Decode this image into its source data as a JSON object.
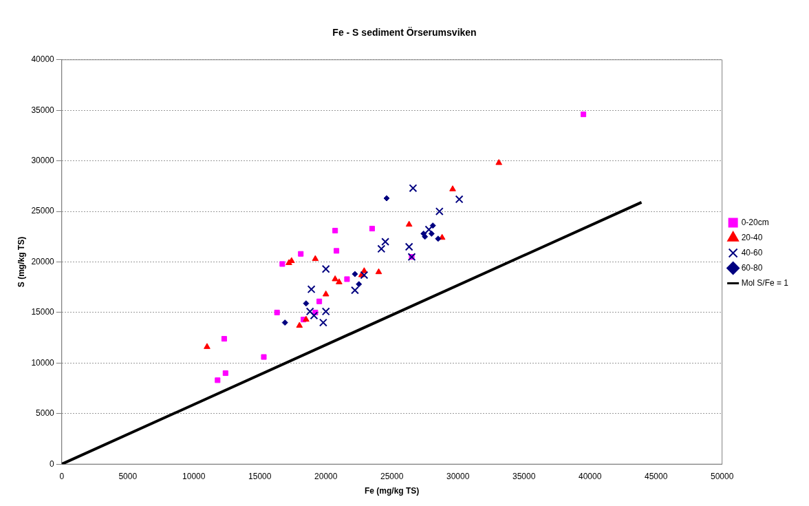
{
  "chart_data": {
    "type": "scatter",
    "title": "Fe - S sediment Örserumsviken",
    "xlabel": "Fe (mg/kg TS)",
    "ylabel": "S (mg/kg TS)",
    "xlim": [
      0,
      50000
    ],
    "xticks": [
      0,
      5000,
      10000,
      15000,
      20000,
      25000,
      30000,
      35000,
      40000,
      45000,
      50000
    ],
    "ylim": [
      0,
      40000
    ],
    "yticks": [
      0,
      5000,
      10000,
      15000,
      20000,
      25000,
      30000,
      35000,
      40000
    ],
    "grid": "y",
    "legend": "right",
    "series": [
      {
        "name": "0-20cm",
        "color": "#ff00ff",
        "marker": "square",
        "x": [
          39500,
          20700,
          23500,
          20800,
          18100,
          16700,
          21600,
          19500,
          19200,
          16300,
          18300,
          26500,
          12300,
          15300,
          12400,
          11800
        ],
        "values": [
          34600,
          23100,
          23300,
          21100,
          20800,
          19800,
          18300,
          16100,
          15000,
          15000,
          14300,
          20500,
          12400,
          10600,
          9000,
          8300
        ]
      },
      {
        "name": "20-40",
        "color": "#ff0000",
        "marker": "triangle",
        "x": [
          33100,
          29600,
          26300,
          28800,
          24000,
          22900,
          22700,
          17200,
          17400,
          19200,
          20700,
          21000,
          20000,
          18000,
          18500,
          11000
        ],
        "values": [
          29800,
          27200,
          23700,
          22400,
          19000,
          19100,
          18700,
          19900,
          20100,
          20300,
          18300,
          18000,
          16800,
          13700,
          14300,
          11600
        ]
      },
      {
        "name": "40-60",
        "color": "#000080",
        "marker": "cross",
        "x": [
          26600,
          30100,
          28600,
          27800,
          24500,
          24200,
          26300,
          26500,
          22900,
          22200,
          20000,
          18900,
          20000,
          18800,
          19100,
          19800
        ],
        "values": [
          27300,
          26200,
          25000,
          23200,
          22000,
          21300,
          21500,
          20500,
          18700,
          17200,
          19300,
          17300,
          15100,
          15100,
          14700,
          14000
        ]
      },
      {
        "name": "60-80",
        "color": "#000080",
        "marker": "diamond",
        "x": [
          24600,
          28100,
          27400,
          27500,
          28000,
          28500,
          22200,
          22500,
          18500,
          16900
        ],
        "values": [
          26300,
          23600,
          22800,
          22500,
          22800,
          22300,
          18800,
          17800,
          15900,
          14000
        ]
      },
      {
        "name": "Mol S/Fe = 1",
        "color": "#000000",
        "type": "line",
        "marker": "none",
        "line_style": "solid",
        "x": [
          0,
          43900
        ],
        "values": [
          0,
          25900
        ]
      }
    ]
  }
}
